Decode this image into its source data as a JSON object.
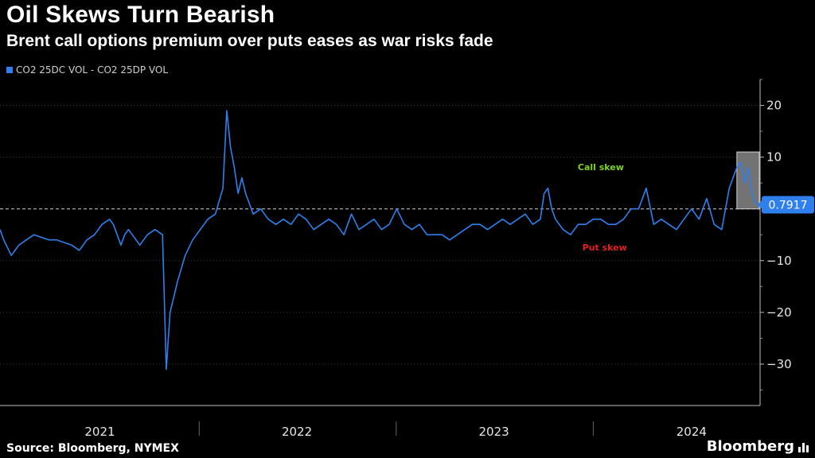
{
  "header": {
    "title": "Oil Skews Turn Bearish",
    "subtitle": "Brent call options premium over puts eases as war risks fade"
  },
  "footer": {
    "source": "Source: Bloomberg, NYMEX",
    "brand": "Bloomberg"
  },
  "colors": {
    "background": "#000000",
    "series": "#2f80ed",
    "call_skew": "#7ed321",
    "put_skew": "#e02020",
    "last_value_box": "#2f80ed",
    "highlight_box": "#9a9a9a"
  },
  "chart_data": {
    "type": "line",
    "series": [
      {
        "name": "CO2 25DC VOL - CO2 25DP VOL",
        "x": [
          "2020-12-28",
          "2021-01-04",
          "2021-01-18",
          "2021-02-01",
          "2021-02-15",
          "2021-03-01",
          "2021-03-15",
          "2021-03-29",
          "2021-04-12",
          "2021-04-26",
          "2021-05-10",
          "2021-05-24",
          "2021-06-07",
          "2021-06-21",
          "2021-07-05",
          "2021-07-19",
          "2021-07-26",
          "2021-08-02",
          "2021-08-09",
          "2021-08-16",
          "2021-08-23",
          "2021-08-30",
          "2021-09-06",
          "2021-09-13",
          "2021-09-27",
          "2021-10-11",
          "2021-10-25",
          "2021-11-01",
          "2021-11-08",
          "2021-11-22",
          "2021-12-06",
          "2021-12-20",
          "2022-01-03",
          "2022-01-17",
          "2022-01-31",
          "2022-02-14",
          "2022-02-21",
          "2022-02-28",
          "2022-03-07",
          "2022-03-14",
          "2022-03-21",
          "2022-03-28",
          "2022-04-11",
          "2022-04-25",
          "2022-05-09",
          "2022-05-23",
          "2022-06-06",
          "2022-06-20",
          "2022-07-04",
          "2022-07-18",
          "2022-08-01",
          "2022-08-15",
          "2022-08-29",
          "2022-09-12",
          "2022-09-26",
          "2022-10-10",
          "2022-10-24",
          "2022-11-07",
          "2022-11-21",
          "2022-12-05",
          "2022-12-19",
          "2023-01-02",
          "2023-01-16",
          "2023-01-30",
          "2023-02-13",
          "2023-02-27",
          "2023-03-13",
          "2023-03-27",
          "2023-04-10",
          "2023-04-24",
          "2023-05-08",
          "2023-05-22",
          "2023-06-05",
          "2023-06-19",
          "2023-07-03",
          "2023-07-17",
          "2023-07-31",
          "2023-08-14",
          "2023-08-28",
          "2023-09-11",
          "2023-09-25",
          "2023-10-02",
          "2023-10-09",
          "2023-10-16",
          "2023-10-23",
          "2023-11-06",
          "2023-11-20",
          "2023-12-04",
          "2023-12-18",
          "2024-01-01",
          "2024-01-15",
          "2024-01-29",
          "2024-02-12",
          "2024-02-26",
          "2024-03-11",
          "2024-03-25",
          "2024-04-08",
          "2024-04-22",
          "2024-05-06",
          "2024-05-20",
          "2024-06-03",
          "2024-06-17",
          "2024-07-01",
          "2024-07-15",
          "2024-07-29",
          "2024-08-12",
          "2024-08-26",
          "2024-09-09",
          "2024-09-23",
          "2024-09-30",
          "2024-10-07",
          "2024-10-14",
          "2024-10-21",
          "2024-10-28"
        ],
        "values": [
          -4,
          -6,
          -9,
          -7,
          -6,
          -5,
          -5.5,
          -6,
          -6,
          -6.5,
          -7,
          -8,
          -6,
          -5,
          -3,
          -2,
          -3,
          -5,
          -7,
          -5,
          -4,
          -5,
          -6,
          -7,
          -5,
          -4,
          -5,
          -31,
          -20,
          -14,
          -9,
          -6,
          -4,
          -2,
          -1,
          4,
          19,
          12,
          8,
          3,
          6,
          3,
          -1,
          0,
          -2,
          -3,
          -2,
          -3,
          -1,
          -2,
          -4,
          -3,
          -2,
          -3,
          -5,
          -1,
          -4,
          -3,
          -2,
          -4,
          -3,
          0,
          -3,
          -4,
          -3,
          -5,
          -5,
          -5,
          -6,
          -5,
          -4,
          -3,
          -3,
          -4,
          -3,
          -2,
          -3,
          -2,
          -1,
          -3,
          -2,
          3,
          4,
          0,
          -2,
          -4,
          -5,
          -3,
          -3,
          -2,
          -2,
          -3,
          -3,
          -2,
          0,
          0,
          4,
          -3,
          -2,
          -3,
          -4,
          -2,
          0,
          -2,
          2,
          -3,
          -4,
          4,
          8,
          9,
          5,
          8,
          3,
          0.7917
        ]
      }
    ],
    "last_value_label": "0.7917",
    "last_value": 0.7917,
    "ylim": [
      -38,
      25
    ],
    "y_ticks": [
      20,
      10,
      0,
      -10,
      -20,
      -30
    ],
    "y_tick_labels": [
      "20",
      "10",
      "",
      "−10",
      "−20",
      "−30"
    ],
    "x_domain": [
      "2020-12-28",
      "2024-11-05"
    ],
    "year_labels": [
      {
        "label": "2021",
        "center": "2021-07-01"
      },
      {
        "label": "2022",
        "center": "2022-07-01"
      },
      {
        "label": "2023",
        "center": "2023-07-01"
      },
      {
        "label": "2024",
        "center": "2024-07-01"
      }
    ],
    "year_boundaries": [
      "2022-01-01",
      "2023-01-01",
      "2024-01-01"
    ],
    "grid": true,
    "zero_line": "dashed",
    "legend_position": "top-left",
    "annotations": [
      {
        "text": "Call skew",
        "x": "2024-01-15",
        "y": 7.5,
        "color_key": "call_skew"
      },
      {
        "text": "Put skew",
        "x": "2024-01-22",
        "y": -8,
        "color_key": "put_skew"
      }
    ],
    "highlight": {
      "x_from": "2024-09-23",
      "x_to": "2024-11-05",
      "y_from": 0,
      "y_to": 11
    }
  }
}
